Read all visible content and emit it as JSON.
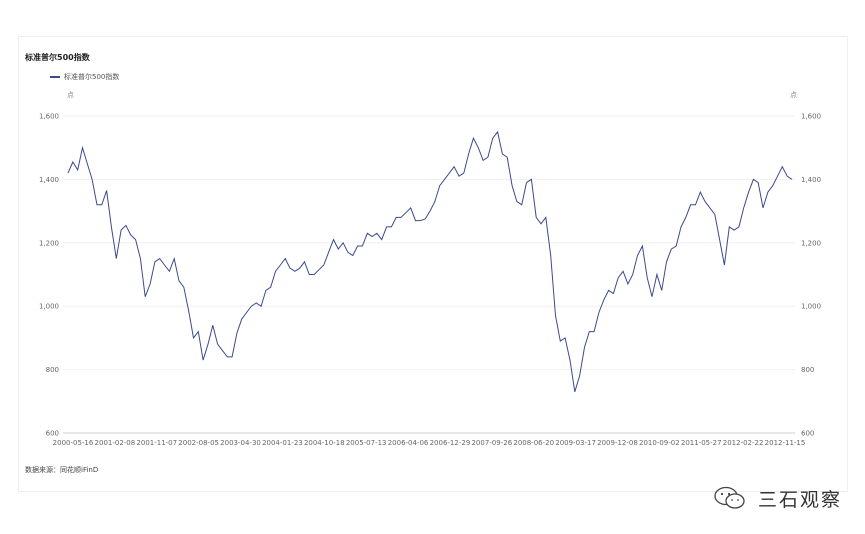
{
  "chart_data": {
    "type": "line",
    "title": "标准普尔500指数",
    "legend": "标准普尔500指数",
    "unit_left": "点",
    "unit_right": "点",
    "ylim": [
      600,
      1600
    ],
    "y_ticks": [
      "600",
      "800",
      "1,000",
      "1,200",
      "1,400",
      "1,600"
    ],
    "x_tick_labels": [
      "2000-05-16",
      "2001-02-08",
      "2001-11-07",
      "2002-08-05",
      "2003-04-30",
      "2004-01-23",
      "2004-10-18",
      "2005-07-13",
      "2006-04-06",
      "2006-12-29",
      "2007-09-26",
      "2008-06-20",
      "2009-03-17",
      "2009-12-08",
      "2010-09-02",
      "2011-05-27",
      "2012-02-22",
      "2012-11-15"
    ],
    "grid": true,
    "legend_position": "top-left",
    "series": [
      {
        "name": "标准普尔500指数",
        "color": "#3b4a8f",
        "x": [
          "2000-05",
          "2000-06",
          "2000-07",
          "2000-08",
          "2000-09",
          "2000-10",
          "2000-11",
          "2000-12",
          "2001-01",
          "2001-02",
          "2001-03",
          "2001-04",
          "2001-05",
          "2001-06",
          "2001-07",
          "2001-08",
          "2001-09",
          "2001-10",
          "2001-11",
          "2001-12",
          "2002-01",
          "2002-02",
          "2002-03",
          "2002-04",
          "2002-05",
          "2002-06",
          "2002-07",
          "2002-08",
          "2002-09",
          "2002-10",
          "2002-11",
          "2002-12",
          "2003-01",
          "2003-02",
          "2003-03",
          "2003-04",
          "2003-05",
          "2003-06",
          "2003-07",
          "2003-08",
          "2003-09",
          "2003-10",
          "2003-11",
          "2003-12",
          "2004-01",
          "2004-02",
          "2004-03",
          "2004-04",
          "2004-05",
          "2004-06",
          "2004-07",
          "2004-08",
          "2004-09",
          "2004-10",
          "2004-11",
          "2004-12",
          "2005-01",
          "2005-02",
          "2005-03",
          "2005-04",
          "2005-05",
          "2005-06",
          "2005-07",
          "2005-08",
          "2005-09",
          "2005-10",
          "2005-11",
          "2005-12",
          "2006-01",
          "2006-02",
          "2006-03",
          "2006-04",
          "2006-05",
          "2006-06",
          "2006-07",
          "2006-08",
          "2006-09",
          "2006-10",
          "2006-11",
          "2006-12",
          "2007-01",
          "2007-02",
          "2007-03",
          "2007-04",
          "2007-05",
          "2007-06",
          "2007-07",
          "2007-08",
          "2007-09",
          "2007-10",
          "2007-11",
          "2007-12",
          "2008-01",
          "2008-02",
          "2008-03",
          "2008-04",
          "2008-05",
          "2008-06",
          "2008-07",
          "2008-08",
          "2008-09",
          "2008-10",
          "2008-11",
          "2008-12",
          "2009-01",
          "2009-02",
          "2009-03",
          "2009-04",
          "2009-05",
          "2009-06",
          "2009-07",
          "2009-08",
          "2009-09",
          "2009-10",
          "2009-11",
          "2009-12",
          "2010-01",
          "2010-02",
          "2010-03",
          "2010-04",
          "2010-05",
          "2010-06",
          "2010-07",
          "2010-08",
          "2010-09",
          "2010-10",
          "2010-11",
          "2010-12",
          "2011-01",
          "2011-02",
          "2011-03",
          "2011-04",
          "2011-05",
          "2011-06",
          "2011-07",
          "2011-08",
          "2011-09",
          "2011-10",
          "2011-11",
          "2011-12",
          "2012-01",
          "2012-02",
          "2012-03",
          "2012-04",
          "2012-05",
          "2012-06",
          "2012-07",
          "2012-08",
          "2012-09",
          "2012-10",
          "2012-11"
        ],
        "values": [
          1420,
          1455,
          1430,
          1500,
          1450,
          1400,
          1320,
          1320,
          1365,
          1250,
          1150,
          1240,
          1255,
          1225,
          1210,
          1150,
          1030,
          1070,
          1140,
          1150,
          1130,
          1110,
          1150,
          1080,
          1060,
          985,
          900,
          920,
          830,
          880,
          940,
          880,
          860,
          840,
          840,
          915,
          960,
          980,
          1000,
          1010,
          1000,
          1050,
          1060,
          1110,
          1130,
          1150,
          1120,
          1110,
          1120,
          1140,
          1100,
          1100,
          1115,
          1130,
          1170,
          1210,
          1180,
          1200,
          1170,
          1160,
          1190,
          1190,
          1230,
          1220,
          1230,
          1210,
          1250,
          1250,
          1280,
          1280,
          1295,
          1310,
          1270,
          1270,
          1275,
          1300,
          1330,
          1380,
          1400,
          1420,
          1440,
          1410,
          1420,
          1480,
          1530,
          1500,
          1460,
          1470,
          1530,
          1550,
          1480,
          1470,
          1380,
          1330,
          1320,
          1390,
          1400,
          1280,
          1260,
          1280,
          1160,
          970,
          890,
          900,
          830,
          730,
          780,
          870,
          920,
          920,
          980,
          1020,
          1050,
          1040,
          1090,
          1110,
          1070,
          1100,
          1160,
          1190,
          1090,
          1030,
          1100,
          1050,
          1140,
          1180,
          1190,
          1250,
          1280,
          1320,
          1320,
          1360,
          1330,
          1310,
          1290,
          1210,
          1130,
          1250,
          1240,
          1250,
          1310,
          1360,
          1400,
          1390,
          1310,
          1360,
          1380,
          1410,
          1440,
          1410,
          1400
        ]
      }
    ]
  },
  "source": "数据来源：同花顺iFinD",
  "watermark": {
    "icon": "wechat-icon",
    "text": "三石观察"
  }
}
